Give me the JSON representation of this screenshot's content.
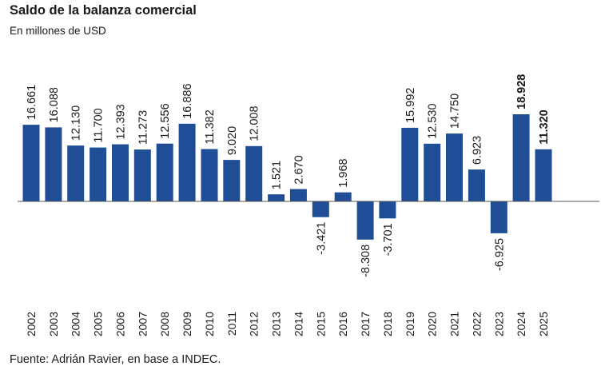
{
  "header": {
    "title": "Saldo de la balanza comercial",
    "subtitle": "En millones de USD"
  },
  "footer": {
    "source": "Fuente: Adrián Ravier, en base a INDEC."
  },
  "colors": {
    "bar": "#1f4e96",
    "axis": "#555555",
    "text": "#1a1a1a"
  },
  "chart_data": {
    "type": "bar",
    "title": "Saldo de la balanza comercial",
    "subtitle": "En millones de USD",
    "xlabel": "",
    "ylabel": "",
    "grid": false,
    "legend": "none",
    "ylim": [
      -9000,
      20000
    ],
    "categories": [
      "2002",
      "2003",
      "2004",
      "2005",
      "2006",
      "2007",
      "2008",
      "2009",
      "2010",
      "2011",
      "2012",
      "2013",
      "2014",
      "2015",
      "2016",
      "2017",
      "2018",
      "2019",
      "2020",
      "2021",
      "2022",
      "2023",
      "2024",
      "2025"
    ],
    "values": [
      16661,
      16088,
      12130,
      11700,
      12393,
      11273,
      12556,
      16886,
      11382,
      9020,
      12008,
      1521,
      2670,
      -3421,
      1968,
      -8308,
      -3701,
      15992,
      12530,
      14750,
      6923,
      -6925,
      18928,
      11320
    ],
    "labels": [
      "16.661",
      "16.088",
      "12.130",
      "11.700",
      "12.393",
      "11.273",
      "12.556",
      "16.886",
      "11.382",
      "9.020",
      "12.008",
      "1.521",
      "2.670",
      "-3.421",
      "1.968",
      "-8.308",
      "-3.701",
      "15.992",
      "12.530",
      "14.750",
      "6.923",
      "-6.925",
      "18.928",
      "11.320"
    ],
    "bold_labels": [
      "2024",
      "2025"
    ]
  }
}
